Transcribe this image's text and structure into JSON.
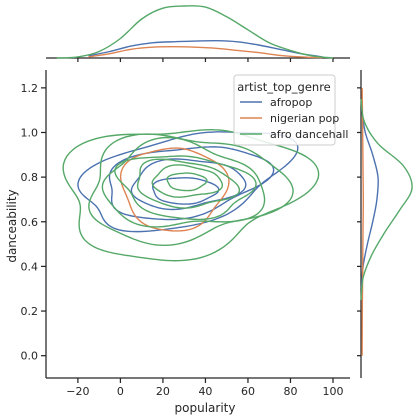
{
  "colors": {
    "afropop": "#4c72b0",
    "nigerian_pop": "#dd8452",
    "afro_dancehall": "#55a868"
  },
  "chart_data": {
    "type": "kde-jointplot",
    "xlabel": "popularity",
    "ylabel": "danceability",
    "xlim": [
      -35,
      108
    ],
    "ylim": [
      -0.1,
      1.28
    ],
    "xticks": [
      -20,
      0,
      20,
      40,
      60,
      80,
      100
    ],
    "yticks": [
      0.0,
      0.2,
      0.4,
      0.6,
      0.8,
      1.0,
      1.2
    ],
    "grid": false,
    "legend": {
      "title": "artist_top_genre",
      "placement": "top-right",
      "entries": [
        "afropop",
        "nigerian pop",
        "afro dancehall"
      ]
    },
    "series": [
      {
        "name": "afropop",
        "color_key": "afropop",
        "joint_contours": [
          {
            "cx": 30,
            "cy": 0.79,
            "rx": 47,
            "ry": 0.21,
            "rot": 0.06,
            "wob": 0.09,
            "ph": 0.4
          },
          {
            "cx": 30,
            "cy": 0.78,
            "rx": 37,
            "ry": 0.16,
            "rot": 0.04,
            "wob": 0.08,
            "ph": 1.1
          },
          {
            "cx": 31,
            "cy": 0.77,
            "rx": 26,
            "ry": 0.11,
            "rot": 0.02,
            "wob": 0.07,
            "ph": 2.0
          },
          {
            "cx": 30,
            "cy": 0.74,
            "rx": 15,
            "ry": 0.06,
            "rot": 0.0,
            "wob": 0.05,
            "ph": 0.7
          }
        ],
        "marginal_x": {
          "x": [
            -15,
            -5,
            5,
            15,
            25,
            35,
            45,
            55,
            65,
            75,
            85,
            95
          ],
          "density": [
            0.1,
            0.3,
            0.55,
            0.7,
            0.75,
            0.78,
            0.8,
            0.75,
            0.6,
            0.4,
            0.2,
            0.05
          ]
        },
        "marginal_y": {
          "y": [
            0.3,
            0.4,
            0.5,
            0.6,
            0.7,
            0.8,
            0.9,
            1.0,
            1.1
          ],
          "density": [
            0.02,
            0.1,
            0.3,
            0.55,
            0.75,
            0.8,
            0.55,
            0.2,
            0.04
          ]
        }
      },
      {
        "name": "nigerian pop",
        "color_key": "nigerian_pop",
        "joint_contours": [
          {
            "cx": 25,
            "cy": 0.75,
            "rx": 24,
            "ry": 0.19,
            "rot": 0.0,
            "wob": 0.06,
            "ph": 0.3
          }
        ],
        "marginal_x": {
          "x": [
            -15,
            -5,
            5,
            15,
            25,
            35,
            45,
            55,
            65,
            75,
            85,
            95
          ],
          "density": [
            0.05,
            0.2,
            0.4,
            0.5,
            0.52,
            0.5,
            0.45,
            0.35,
            0.25,
            0.12,
            0.05,
            0.02
          ]
        },
        "marginal_y": {
          "y": [
            0.0,
            0.2,
            0.4,
            0.6,
            0.7,
            0.8,
            0.9,
            1.0,
            1.2
          ],
          "density": [
            0.05,
            0.06,
            0.08,
            0.1,
            0.11,
            0.1,
            0.09,
            0.08,
            0.05
          ]
        }
      },
      {
        "name": "afro dancehall",
        "color_key": "afro_dancehall",
        "joint_contours": [
          {
            "cx": 28,
            "cy": 0.74,
            "rx": 54,
            "ry": 0.3,
            "rot": 0.03,
            "wob": 0.12,
            "ph": 0.9
          },
          {
            "cx": 29,
            "cy": 0.75,
            "rx": 45,
            "ry": 0.24,
            "rot": 0.02,
            "wob": 0.11,
            "ph": 1.7
          },
          {
            "cx": 29,
            "cy": 0.76,
            "rx": 37,
            "ry": 0.19,
            "rot": 0.0,
            "wob": 0.1,
            "ph": 2.6
          },
          {
            "cx": 30,
            "cy": 0.76,
            "rx": 30,
            "ry": 0.145,
            "rot": -0.02,
            "wob": 0.09,
            "ph": 0.2
          },
          {
            "cx": 30,
            "cy": 0.77,
            "rx": 23,
            "ry": 0.105,
            "rot": -0.02,
            "wob": 0.08,
            "ph": 1.4
          },
          {
            "cx": 31,
            "cy": 0.78,
            "rx": 16,
            "ry": 0.07,
            "rot": 0.0,
            "wob": 0.07,
            "ph": 2.2
          },
          {
            "cx": 31,
            "cy": 0.78,
            "rx": 9,
            "ry": 0.04,
            "rot": 0.0,
            "wob": 0.05,
            "ph": 0.5
          }
        ],
        "marginal_x": {
          "x": [
            -30,
            -20,
            -10,
            0,
            10,
            20,
            30,
            40,
            50,
            60,
            70,
            80,
            90,
            100
          ],
          "density": [
            0.0,
            0.05,
            0.3,
            0.9,
            1.8,
            2.3,
            2.4,
            2.35,
            1.9,
            1.3,
            0.7,
            0.35,
            0.1,
            0.0
          ]
        },
        "marginal_y": {
          "y": [
            0.25,
            0.35,
            0.45,
            0.55,
            0.65,
            0.75,
            0.85,
            0.95,
            1.05,
            1.15
          ],
          "density": [
            0.0,
            0.1,
            0.5,
            1.1,
            1.8,
            2.4,
            2.0,
            0.8,
            0.15,
            0.0
          ]
        }
      }
    ]
  }
}
